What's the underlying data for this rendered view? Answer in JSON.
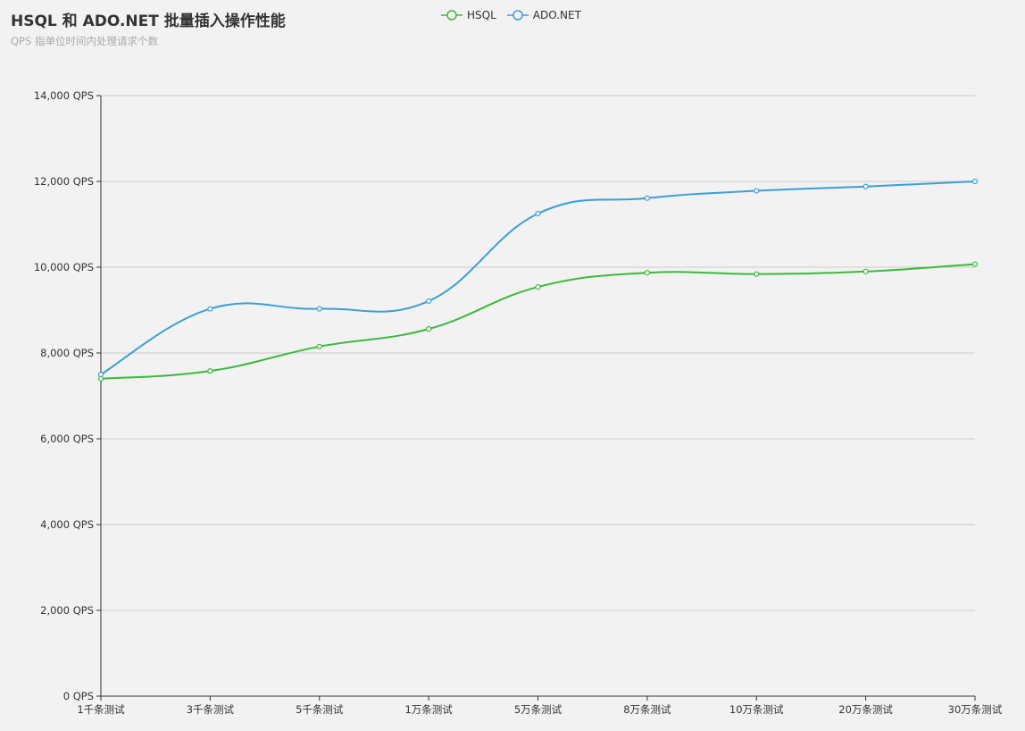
{
  "chart_data": {
    "type": "line",
    "title": "HSQL 和 ADO.NET 批量插入操作性能",
    "subtitle": "QPS 指单位时间内处理请求个数",
    "categories": [
      "1千条测试",
      "3千条测试",
      "5千条测试",
      "1万条测试",
      "5万条测试",
      "8万条测试",
      "10万条测试",
      "20万条测试",
      "30万条测试"
    ],
    "y_tick_labels": [
      "0 QPS",
      "2,000 QPS",
      "4,000 QPS",
      "6,000 QPS",
      "8,000 QPS",
      "10,000 QPS",
      "12,000 QPS",
      "14,000 QPS"
    ],
    "ylim": [
      0,
      14000
    ],
    "y_tick_step": 2000,
    "grid": true,
    "legend_position": "top-center",
    "series": [
      {
        "name": "HSQL",
        "color": "#3db83d",
        "values": [
          7400,
          7580,
          8150,
          8560,
          9540,
          9870,
          9840,
          9900,
          10070
        ]
      },
      {
        "name": "ADO.NET",
        "color": "#3b9fd4",
        "values": [
          7500,
          9030,
          9030,
          9210,
          11250,
          11610,
          11780,
          11880,
          12000
        ]
      }
    ]
  }
}
